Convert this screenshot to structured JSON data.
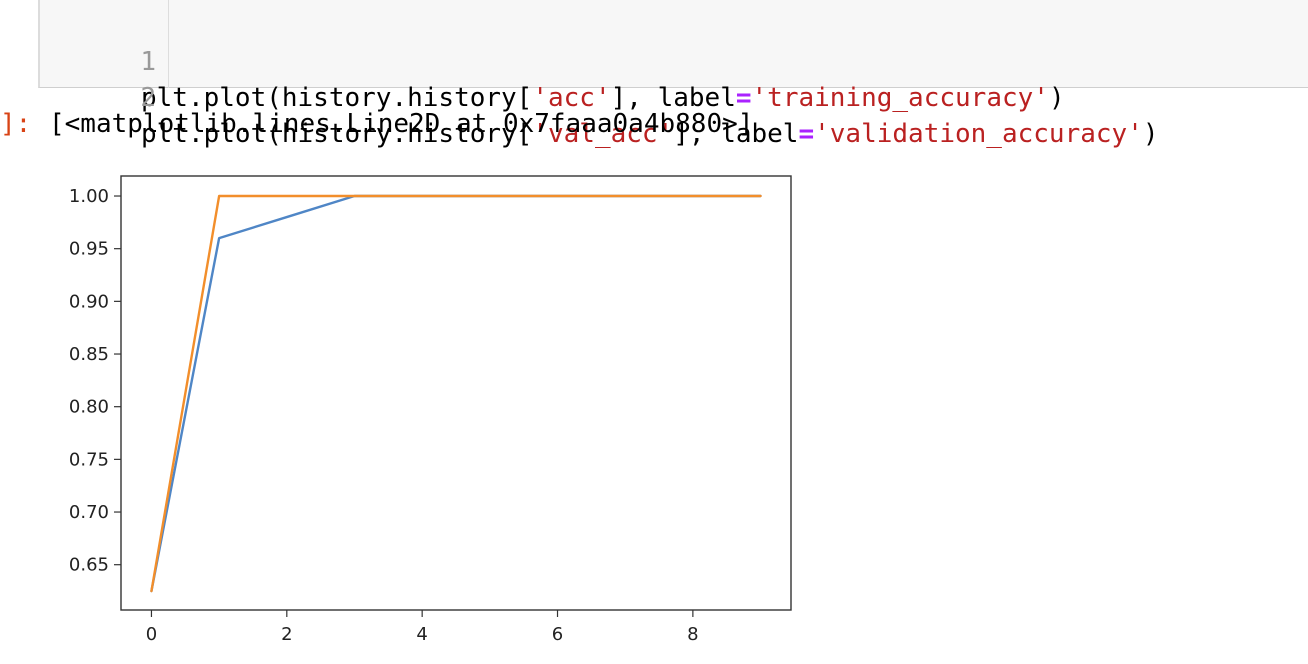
{
  "cell": {
    "lines": [
      {
        "number": "1",
        "prefix": "plt.plot(history.history[",
        "key": "'acc'",
        "mid": "], label",
        "eq": "=",
        "label": "'training_accuracy'",
        "suffix": ")"
      },
      {
        "number": "2",
        "prefix": "plt.plot(history.history[",
        "key": "'val_acc'",
        "mid": "], label",
        "eq": "=",
        "label": "'validation_accuracy'",
        "suffix": ")"
      }
    ]
  },
  "output": {
    "prompt": "]:",
    "text": "[<matplotlib.lines.Line2D at 0x7faaa0a4b880>]"
  },
  "chart_data": {
    "type": "line",
    "x": [
      0,
      1,
      2,
      3,
      4,
      5,
      6,
      7,
      8,
      9
    ],
    "series": [
      {
        "color": "#4f86c6",
        "values": [
          0.625,
          0.96,
          0.98,
          1.0,
          1.0,
          1.0,
          1.0,
          1.0,
          1.0,
          1.0
        ]
      },
      {
        "color": "#f28e2b",
        "values": [
          0.625,
          1.0,
          1.0,
          1.0,
          1.0,
          1.0,
          1.0,
          1.0,
          1.0,
          1.0
        ]
      }
    ],
    "xlim": [
      -0.45,
      9.45
    ],
    "ylim": [
      0.607,
      1.019
    ],
    "xticks": [
      0,
      2,
      4,
      6,
      8
    ],
    "yticks": [
      0.65,
      0.7,
      0.75,
      0.8,
      0.85,
      0.9,
      0.95,
      1.0
    ],
    "xtick_labels": [
      "0",
      "2",
      "4",
      "6",
      "8"
    ],
    "ytick_labels": [
      "0.65",
      "0.70",
      "0.75",
      "0.80",
      "0.85",
      "0.90",
      "0.95",
      "1.00"
    ],
    "grid": false,
    "legend": false
  }
}
